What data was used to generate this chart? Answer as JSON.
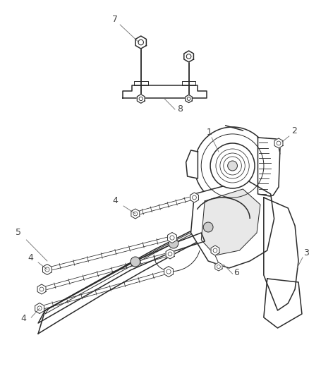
{
  "bg_color": "#ffffff",
  "lc": "#2a2a2a",
  "label_color": "#444444",
  "figsize": [
    4.38,
    5.33
  ],
  "dpi": 100,
  "lw_main": 1.1,
  "lw_thin": 0.7,
  "lw_bolt": 0.9
}
